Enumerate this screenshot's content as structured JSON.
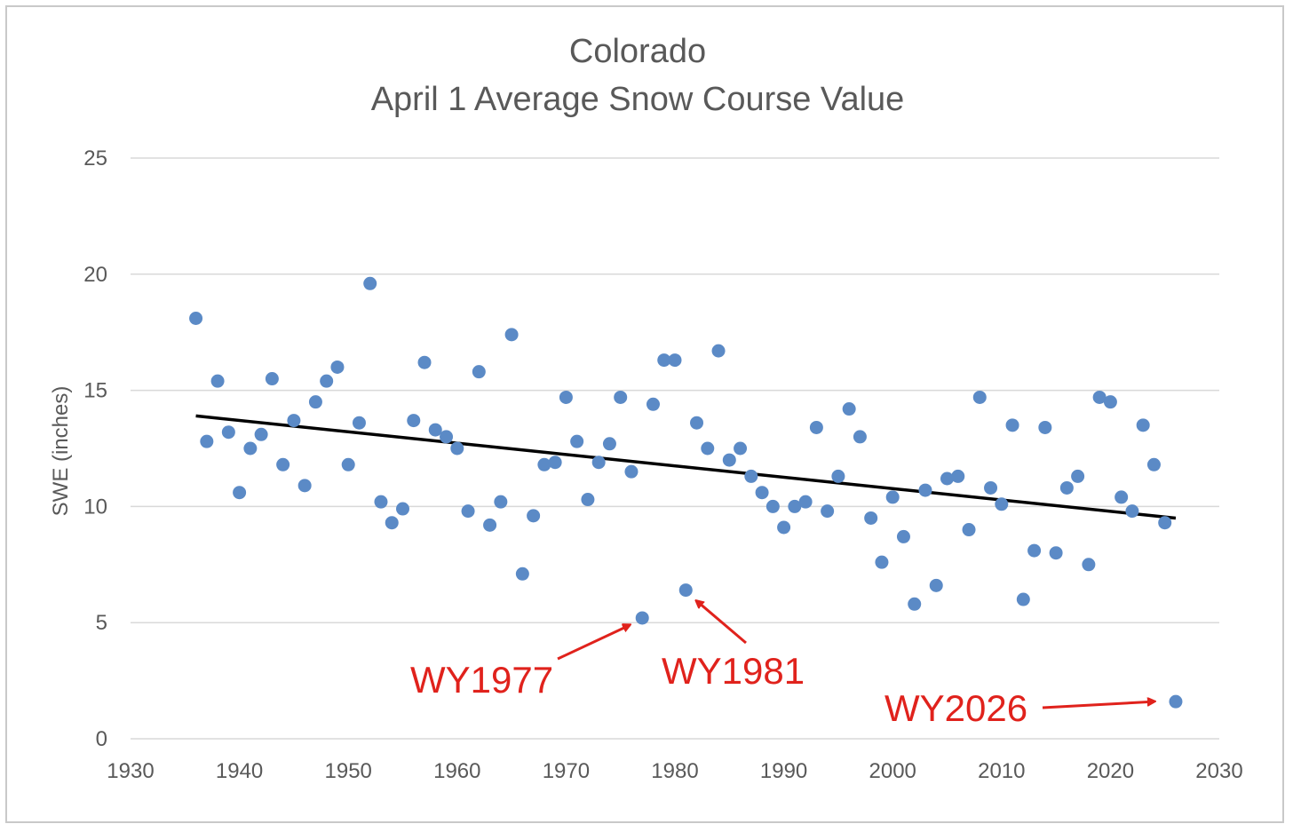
{
  "chart_data": {
    "type": "scatter",
    "title_line1": "Colorado",
    "title_line2": "April 1 Average Snow Course Value",
    "xlabel": "",
    "ylabel": "SWE (inches)",
    "xlim": [
      1930,
      2030
    ],
    "ylim": [
      0,
      25
    ],
    "x_ticks": [
      "1930",
      "1940",
      "1950",
      "1960",
      "1970",
      "1980",
      "1990",
      "2000",
      "2010",
      "2020",
      "2030"
    ],
    "y_ticks": [
      "0",
      "5",
      "10",
      "15",
      "20",
      "25"
    ],
    "grid": true,
    "legend": "none",
    "marker_color": "#5b8ac6",
    "trend_color": "#000000",
    "annotation_color": "#e0221c",
    "trendline": {
      "x": [
        1936,
        2026
      ],
      "y": [
        13.9,
        9.5
      ]
    },
    "points": [
      {
        "x": 1936,
        "y": 18.1
      },
      {
        "x": 1937,
        "y": 12.8
      },
      {
        "x": 1938,
        "y": 15.4
      },
      {
        "x": 1939,
        "y": 13.2
      },
      {
        "x": 1940,
        "y": 10.6
      },
      {
        "x": 1941,
        "y": 12.5
      },
      {
        "x": 1942,
        "y": 13.1
      },
      {
        "x": 1943,
        "y": 15.5
      },
      {
        "x": 1944,
        "y": 11.8
      },
      {
        "x": 1945,
        "y": 13.7
      },
      {
        "x": 1946,
        "y": 10.9
      },
      {
        "x": 1947,
        "y": 14.5
      },
      {
        "x": 1948,
        "y": 15.4
      },
      {
        "x": 1949,
        "y": 16.0
      },
      {
        "x": 1950,
        "y": 11.8
      },
      {
        "x": 1951,
        "y": 13.6
      },
      {
        "x": 1952,
        "y": 19.6
      },
      {
        "x": 1953,
        "y": 10.2
      },
      {
        "x": 1954,
        "y": 9.3
      },
      {
        "x": 1955,
        "y": 9.9
      },
      {
        "x": 1956,
        "y": 13.7
      },
      {
        "x": 1957,
        "y": 16.2
      },
      {
        "x": 1958,
        "y": 13.3
      },
      {
        "x": 1959,
        "y": 13.0
      },
      {
        "x": 1960,
        "y": 12.5
      },
      {
        "x": 1961,
        "y": 9.8
      },
      {
        "x": 1962,
        "y": 15.8
      },
      {
        "x": 1963,
        "y": 9.2
      },
      {
        "x": 1964,
        "y": 10.2
      },
      {
        "x": 1965,
        "y": 17.4
      },
      {
        "x": 1966,
        "y": 7.1
      },
      {
        "x": 1967,
        "y": 9.6
      },
      {
        "x": 1968,
        "y": 11.8
      },
      {
        "x": 1969,
        "y": 11.9
      },
      {
        "x": 1970,
        "y": 14.7
      },
      {
        "x": 1971,
        "y": 12.8
      },
      {
        "x": 1972,
        "y": 10.3
      },
      {
        "x": 1973,
        "y": 11.9
      },
      {
        "x": 1974,
        "y": 12.7
      },
      {
        "x": 1975,
        "y": 14.7
      },
      {
        "x": 1976,
        "y": 11.5
      },
      {
        "x": 1977,
        "y": 5.2
      },
      {
        "x": 1978,
        "y": 14.4
      },
      {
        "x": 1979,
        "y": 16.3
      },
      {
        "x": 1980,
        "y": 16.3
      },
      {
        "x": 1981,
        "y": 6.4
      },
      {
        "x": 1982,
        "y": 13.6
      },
      {
        "x": 1983,
        "y": 12.5
      },
      {
        "x": 1984,
        "y": 16.7
      },
      {
        "x": 1985,
        "y": 12.0
      },
      {
        "x": 1986,
        "y": 12.5
      },
      {
        "x": 1987,
        "y": 11.3
      },
      {
        "x": 1988,
        "y": 10.6
      },
      {
        "x": 1989,
        "y": 10.0
      },
      {
        "x": 1990,
        "y": 9.1
      },
      {
        "x": 1991,
        "y": 10.0
      },
      {
        "x": 1992,
        "y": 10.2
      },
      {
        "x": 1993,
        "y": 13.4
      },
      {
        "x": 1994,
        "y": 9.8
      },
      {
        "x": 1995,
        "y": 11.3
      },
      {
        "x": 1996,
        "y": 14.2
      },
      {
        "x": 1997,
        "y": 13.0
      },
      {
        "x": 1998,
        "y": 9.5
      },
      {
        "x": 1999,
        "y": 7.6
      },
      {
        "x": 2000,
        "y": 10.4
      },
      {
        "x": 2001,
        "y": 8.7
      },
      {
        "x": 2002,
        "y": 5.8
      },
      {
        "x": 2003,
        "y": 10.7
      },
      {
        "x": 2004,
        "y": 6.6
      },
      {
        "x": 2005,
        "y": 11.2
      },
      {
        "x": 2006,
        "y": 11.3
      },
      {
        "x": 2007,
        "y": 9.0
      },
      {
        "x": 2008,
        "y": 14.7
      },
      {
        "x": 2009,
        "y": 10.8
      },
      {
        "x": 2010,
        "y": 10.1
      },
      {
        "x": 2011,
        "y": 13.5
      },
      {
        "x": 2012,
        "y": 6.0
      },
      {
        "x": 2013,
        "y": 8.1
      },
      {
        "x": 2014,
        "y": 13.4
      },
      {
        "x": 2015,
        "y": 8.0
      },
      {
        "x": 2016,
        "y": 10.8
      },
      {
        "x": 2017,
        "y": 11.3
      },
      {
        "x": 2018,
        "y": 7.5
      },
      {
        "x": 2019,
        "y": 14.7
      },
      {
        "x": 2020,
        "y": 14.5
      },
      {
        "x": 2021,
        "y": 10.4
      },
      {
        "x": 2022,
        "y": 9.8
      },
      {
        "x": 2023,
        "y": 13.5
      },
      {
        "x": 2024,
        "y": 11.8
      },
      {
        "x": 2025,
        "y": 9.3
      },
      {
        "x": 2026,
        "y": 1.6
      }
    ],
    "annotations": [
      {
        "label": "WY1977",
        "x": 1977,
        "y": 5.2
      },
      {
        "label": "WY1981",
        "x": 1981,
        "y": 6.4
      },
      {
        "label": "WY2026",
        "x": 2026,
        "y": 1.6
      }
    ]
  }
}
